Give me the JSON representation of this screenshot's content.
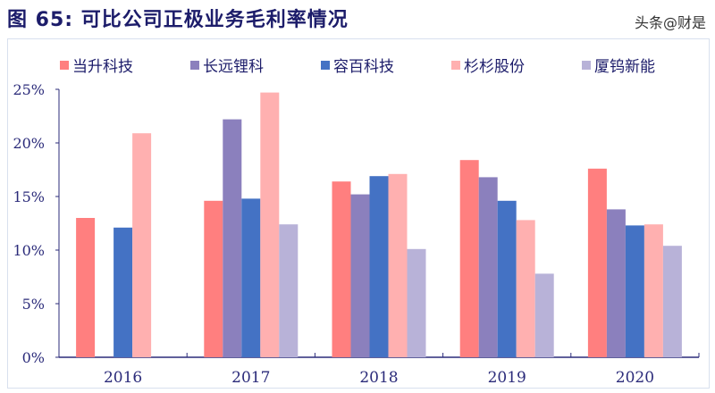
{
  "title": "图 65:  可比公司正极业务毛利率情况",
  "watermark": "头条@财是",
  "chart_data": {
    "type": "bar",
    "title": "图 65:  可比公司正极业务毛利率情况",
    "categories": [
      "2016",
      "2017",
      "2018",
      "2019",
      "2020"
    ],
    "ylim": [
      0,
      25
    ],
    "yticks": [
      "0%",
      "5%",
      "10%",
      "15%",
      "20%",
      "25%"
    ],
    "ytick_values": [
      0,
      5,
      10,
      15,
      20,
      25
    ],
    "y_unit": "%",
    "grid": false,
    "legend_position": "top",
    "series": [
      {
        "name": "当升科技",
        "color": "#ff7f7f",
        "values": [
          13.0,
          14.6,
          16.4,
          18.4,
          17.6
        ]
      },
      {
        "name": "长远锂科",
        "color": "#8b80bd",
        "values": [
          null,
          22.2,
          15.2,
          16.8,
          13.8
        ]
      },
      {
        "name": "容百科技",
        "color": "#4472c4",
        "values": [
          12.1,
          14.8,
          16.9,
          14.6,
          12.3
        ]
      },
      {
        "name": "杉杉股份",
        "color": "#ffb0b0",
        "values": [
          20.9,
          24.7,
          17.1,
          12.8,
          12.4
        ]
      },
      {
        "name": "厦钨新能",
        "color": "#b8b2d8",
        "values": [
          null,
          12.4,
          10.1,
          7.8,
          10.4
        ]
      }
    ]
  }
}
